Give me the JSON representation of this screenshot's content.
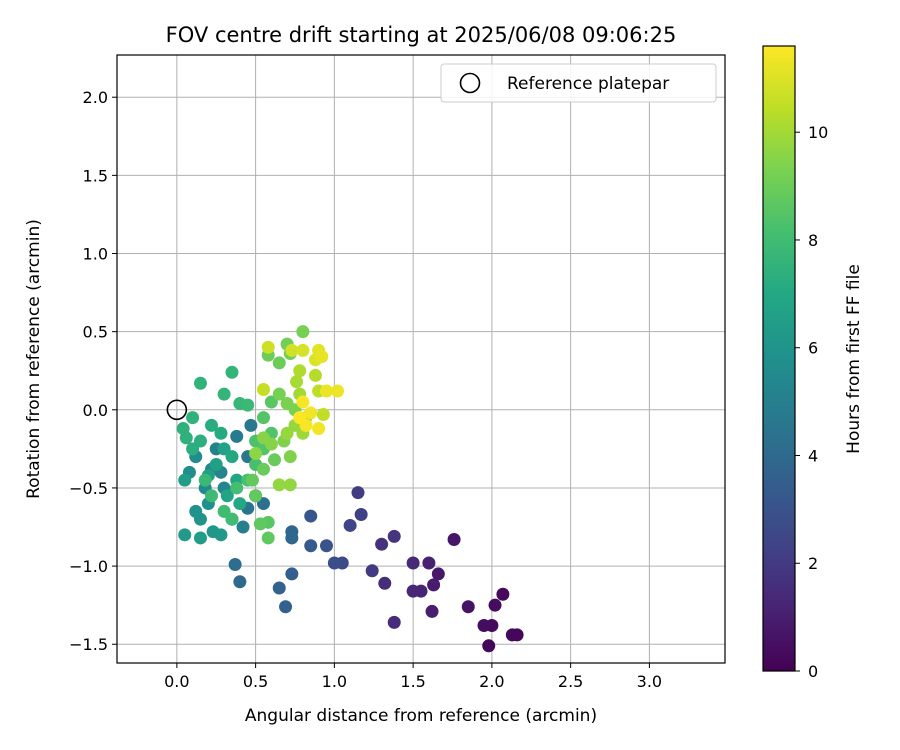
{
  "chart_data": {
    "type": "scatter",
    "title": "FOV centre drift starting at 2025/06/08 09:06:25",
    "xlabel": "Angular distance from reference (arcmin)",
    "ylabel": "Rotation from reference (arcmin)",
    "xlim": [
      -0.38,
      3.48
    ],
    "ylim": [
      -1.62,
      2.27
    ],
    "xticks": [
      0.0,
      0.5,
      1.0,
      1.5,
      2.0,
      2.5,
      3.0
    ],
    "xtick_labels": [
      "0.0",
      "0.5",
      "1.0",
      "1.5",
      "2.0",
      "2.5",
      "3.0"
    ],
    "yticks": [
      -1.5,
      -1.0,
      -0.5,
      0.0,
      0.5,
      1.0,
      1.5,
      2.0
    ],
    "ytick_labels": [
      "−1.5",
      "−1.0",
      "−0.5",
      "0.0",
      "0.5",
      "1.0",
      "1.5",
      "2.0"
    ],
    "grid": true,
    "legend": {
      "position": "top-right",
      "label": "Reference platepar"
    },
    "reference_point": {
      "x": 0.0,
      "y": 0.0
    },
    "colorbar": {
      "label": "Hours from first FF file",
      "colormap": "viridis",
      "range": [
        0,
        11.6
      ],
      "ticks": [
        0,
        2,
        4,
        6,
        8,
        10
      ],
      "tick_labels": [
        "0",
        "2",
        "4",
        "6",
        "8",
        "10"
      ]
    },
    "points": [
      [
        1.98,
        -1.51,
        0.2
      ],
      [
        2.0,
        -1.38,
        0.3
      ],
      [
        1.95,
        -1.38,
        0.4
      ],
      [
        2.13,
        -1.44,
        0.3
      ],
      [
        2.16,
        -1.44,
        0.2
      ],
      [
        2.07,
        -1.18,
        0.3
      ],
      [
        2.02,
        -1.25,
        0.4
      ],
      [
        1.85,
        -1.26,
        0.6
      ],
      [
        1.76,
        -0.83,
        0.7
      ],
      [
        1.66,
        -1.05,
        0.8
      ],
      [
        1.63,
        -1.12,
        0.9
      ],
      [
        1.62,
        -1.29,
        1.0
      ],
      [
        1.6,
        -0.98,
        1.1
      ],
      [
        1.55,
        -1.16,
        1.2
      ],
      [
        1.5,
        -1.16,
        1.3
      ],
      [
        1.5,
        -0.98,
        1.4
      ],
      [
        1.38,
        -1.36,
        1.5
      ],
      [
        1.32,
        -1.11,
        1.6
      ],
      [
        1.3,
        -0.86,
        1.7
      ],
      [
        1.38,
        -0.81,
        1.8
      ],
      [
        1.24,
        -1.03,
        2.0
      ],
      [
        1.15,
        -0.53,
        2.1
      ],
      [
        1.17,
        -0.67,
        2.2
      ],
      [
        1.1,
        -0.74,
        2.4
      ],
      [
        1.05,
        -0.98,
        2.6
      ],
      [
        1.0,
        -0.98,
        2.8
      ],
      [
        0.95,
        -0.87,
        3.0
      ],
      [
        0.85,
        -0.68,
        3.2
      ],
      [
        0.85,
        -0.87,
        3.3
      ],
      [
        0.73,
        -1.05,
        3.5
      ],
      [
        0.69,
        -1.26,
        3.6
      ],
      [
        0.65,
        -1.14,
        3.7
      ],
      [
        0.73,
        -0.78,
        3.8
      ],
      [
        0.73,
        -0.82,
        3.9
      ],
      [
        0.4,
        -1.1,
        4.0
      ],
      [
        0.37,
        -0.99,
        4.2
      ],
      [
        0.55,
        -0.6,
        4.3
      ],
      [
        0.5,
        -0.55,
        4.4
      ],
      [
        0.45,
        -0.63,
        4.5
      ],
      [
        0.45,
        -0.3,
        4.6
      ],
      [
        0.47,
        -0.1,
        4.7
      ],
      [
        0.38,
        -0.17,
        4.8
      ],
      [
        0.35,
        -0.7,
        4.9
      ],
      [
        0.42,
        -0.75,
        5.0
      ],
      [
        0.25,
        -0.25,
        5.1
      ],
      [
        0.28,
        -0.4,
        5.2
      ],
      [
        0.3,
        -0.5,
        5.3
      ],
      [
        0.22,
        -0.38,
        5.4
      ],
      [
        0.18,
        -0.5,
        5.5
      ],
      [
        0.12,
        -0.3,
        5.6
      ],
      [
        0.08,
        -0.4,
        5.7
      ],
      [
        0.2,
        -0.6,
        5.8
      ],
      [
        0.12,
        -0.65,
        5.9
      ],
      [
        0.15,
        -0.7,
        6.0
      ],
      [
        0.23,
        -0.78,
        6.1
      ],
      [
        0.28,
        -0.8,
        6.2
      ],
      [
        0.05,
        -0.8,
        6.3
      ],
      [
        0.15,
        -0.82,
        6.4
      ],
      [
        0.05,
        -0.45,
        6.5
      ],
      [
        0.2,
        -0.42,
        6.6
      ],
      [
        0.25,
        -0.35,
        6.6
      ],
      [
        0.3,
        -0.25,
        6.7
      ],
      [
        0.32,
        -0.55,
        6.8
      ],
      [
        0.38,
        -0.45,
        6.9
      ],
      [
        0.4,
        -0.6,
        7.0
      ],
      [
        0.35,
        -0.3,
        7.0
      ],
      [
        0.28,
        -0.15,
        7.1
      ],
      [
        0.22,
        -0.1,
        7.2
      ],
      [
        0.15,
        -0.2,
        7.3
      ],
      [
        0.1,
        -0.25,
        7.3
      ],
      [
        0.06,
        -0.18,
        7.4
      ],
      [
        0.04,
        -0.12,
        7.4
      ],
      [
        0.1,
        -0.05,
        7.5
      ],
      [
        0.15,
        0.17,
        7.5
      ],
      [
        0.3,
        0.1,
        7.6
      ],
      [
        0.35,
        0.24,
        7.6
      ],
      [
        0.4,
        0.04,
        7.7
      ],
      [
        0.45,
        0.03,
        7.8
      ],
      [
        0.18,
        -0.45,
        7.8
      ],
      [
        0.22,
        -0.55,
        7.9
      ],
      [
        0.3,
        -0.65,
        8.0
      ],
      [
        0.35,
        -0.7,
        8.0
      ],
      [
        0.38,
        -0.5,
        8.1
      ],
      [
        0.45,
        -0.45,
        8.2
      ],
      [
        0.5,
        -0.35,
        8.2
      ],
      [
        0.5,
        -0.2,
        8.3
      ],
      [
        0.55,
        -0.25,
        8.4
      ],
      [
        0.6,
        -0.15,
        8.4
      ],
      [
        0.55,
        -0.05,
        8.5
      ],
      [
        0.6,
        0.05,
        8.6
      ],
      [
        0.58,
        -0.72,
        8.6
      ],
      [
        0.53,
        -0.73,
        8.7
      ],
      [
        0.58,
        -0.82,
        8.7
      ],
      [
        0.5,
        -0.55,
        8.8
      ],
      [
        0.48,
        -0.45,
        8.8
      ],
      [
        0.55,
        -0.38,
        8.9
      ],
      [
        0.62,
        -0.32,
        8.9
      ],
      [
        0.58,
        0.35,
        9.0
      ],
      [
        0.65,
        0.3,
        9.0
      ],
      [
        0.7,
        0.42,
        9.1
      ],
      [
        0.72,
        0.36,
        9.1
      ],
      [
        0.8,
        0.5,
        9.2
      ],
      [
        0.65,
        0.1,
        9.2
      ],
      [
        0.7,
        0.04,
        9.3
      ],
      [
        0.75,
        0.0,
        9.3
      ],
      [
        0.68,
        -0.2,
        9.4
      ],
      [
        0.72,
        -0.3,
        9.4
      ],
      [
        0.6,
        -0.22,
        9.5
      ],
      [
        0.55,
        -0.18,
        9.5
      ],
      [
        0.5,
        -0.28,
        9.6
      ],
      [
        0.65,
        -0.48,
        9.7
      ],
      [
        0.72,
        -0.48,
        9.7
      ],
      [
        0.7,
        -0.15,
        9.8
      ],
      [
        0.75,
        -0.1,
        9.8
      ],
      [
        0.8,
        -0.15,
        9.9
      ],
      [
        0.82,
        -0.05,
        10.0
      ],
      [
        0.78,
        0.1,
        10.0
      ],
      [
        0.76,
        0.18,
        10.1
      ],
      [
        0.78,
        0.25,
        10.2
      ],
      [
        0.88,
        0.22,
        10.3
      ],
      [
        0.9,
        0.12,
        10.4
      ],
      [
        0.93,
        -0.03,
        10.5
      ],
      [
        0.55,
        0.13,
        10.6
      ],
      [
        0.58,
        0.4,
        10.7
      ],
      [
        0.73,
        0.38,
        10.8
      ],
      [
        0.8,
        0.38,
        10.9
      ],
      [
        0.88,
        0.32,
        11.0
      ],
      [
        0.9,
        0.38,
        11.1
      ],
      [
        0.92,
        0.34,
        11.2
      ],
      [
        0.95,
        0.12,
        11.3
      ],
      [
        1.02,
        0.12,
        11.3
      ],
      [
        0.9,
        -0.12,
        11.4
      ],
      [
        0.85,
        -0.02,
        11.4
      ],
      [
        0.8,
        0.05,
        11.5
      ],
      [
        0.82,
        -0.1,
        11.5
      ],
      [
        0.78,
        -0.05,
        11.6
      ]
    ]
  }
}
